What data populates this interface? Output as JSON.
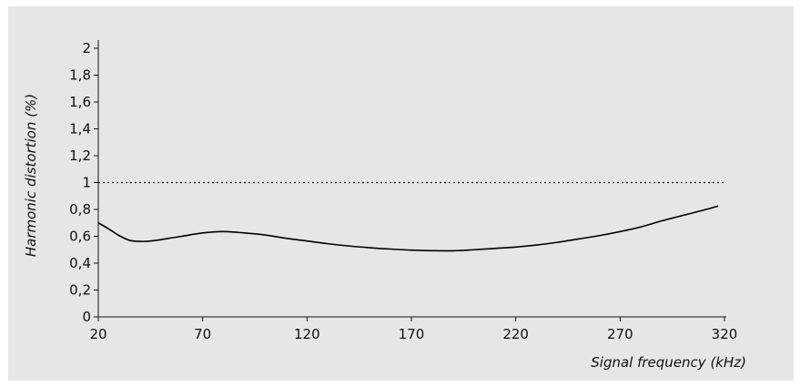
{
  "chart_data": {
    "type": "line",
    "xlabel": "Signal frequency (kHz)",
    "ylabel": "Harmonic distortion (%)",
    "xlim": [
      20,
      320
    ],
    "ylim": [
      0,
      2
    ],
    "x_ticks": [
      "20",
      "70",
      "120",
      "170",
      "220",
      "270",
      "320"
    ],
    "x_tick_values": [
      20,
      70,
      120,
      170,
      220,
      270,
      320
    ],
    "y_ticks": [
      "0",
      "0,2",
      "0,4",
      "0,6",
      "0,8",
      "1",
      "1,2",
      "1,4",
      "1,6",
      "1,8",
      "2"
    ],
    "y_tick_values": [
      0,
      0.2,
      0.4,
      0.6,
      0.8,
      1.0,
      1.2,
      1.4,
      1.6,
      1.8,
      2.0
    ],
    "reference_line": {
      "y": 1.0,
      "style": "dotted"
    },
    "series": [
      {
        "x": [
          20,
          25,
          30,
          35,
          40,
          45,
          50,
          55,
          60,
          70,
          80,
          90,
          100,
          110,
          120,
          130,
          140,
          150,
          160,
          170,
          180,
          190,
          200,
          210,
          220,
          230,
          240,
          250,
          260,
          270,
          280,
          290,
          300,
          310,
          317
        ],
        "y": [
          0.7,
          0.655,
          0.605,
          0.57,
          0.562,
          0.565,
          0.575,
          0.588,
          0.6,
          0.625,
          0.635,
          0.625,
          0.61,
          0.585,
          0.565,
          0.545,
          0.528,
          0.515,
          0.505,
          0.497,
          0.493,
          0.492,
          0.5,
          0.51,
          0.52,
          0.535,
          0.555,
          0.58,
          0.605,
          0.635,
          0.67,
          0.715,
          0.755,
          0.795,
          0.825
        ],
        "color": "#000000"
      }
    ],
    "grid": false,
    "legend": "none"
  }
}
